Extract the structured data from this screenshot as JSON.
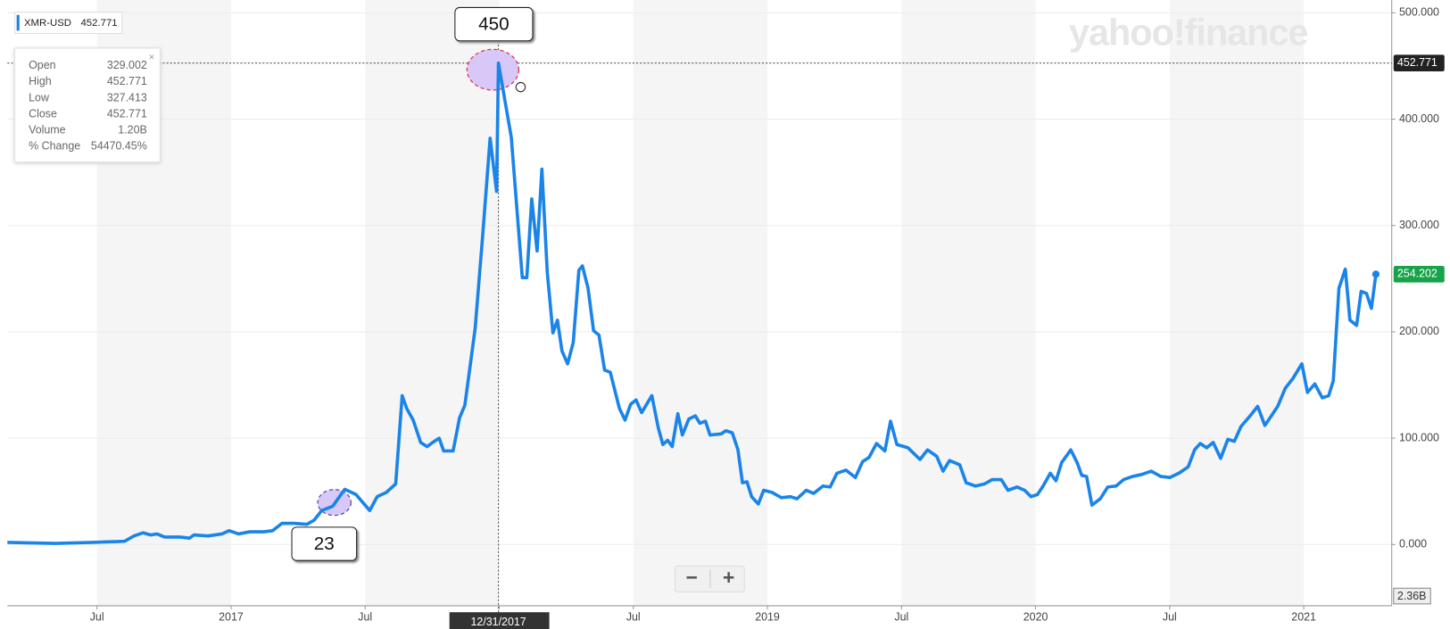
{
  "chart_data": {
    "type": "line",
    "watermark": "yahoo!finance",
    "series": [
      {
        "name": "XMR-USD",
        "color": "#1a84e9",
        "x": [
          2016.166,
          2016.345,
          2016.483,
          2016.603,
          2016.638,
          2016.672,
          2016.7,
          2016.724,
          2016.752,
          2016.81,
          2016.845,
          2016.862,
          2016.914,
          2016.966,
          2016.993,
          2017.028,
          2017.069,
          2017.121,
          2017.155,
          2017.19,
          2017.234,
          2017.283,
          2017.31,
          2017.338,
          2017.379,
          2017.424,
          2017.466,
          2017.517,
          2017.545,
          2017.579,
          2017.614,
          2017.638,
          2017.655,
          2017.679,
          2017.707,
          2017.731,
          2017.752,
          2017.776,
          2017.793,
          2017.828,
          2017.852,
          2017.872,
          2017.91,
          2017.938,
          2017.966,
          2017.99,
          2017.997,
          2018.045,
          2018.086,
          2018.103,
          2018.121,
          2018.141,
          2018.159,
          2018.179,
          2018.2,
          2018.217,
          2018.234,
          2018.255,
          2018.276,
          2018.297,
          2018.31,
          2018.331,
          2018.352,
          2018.372,
          2018.393,
          2018.414,
          2018.448,
          2018.469,
          2018.49,
          2018.51,
          2018.531,
          2018.569,
          2018.593,
          2018.61,
          2018.628,
          2018.645,
          2018.666,
          2018.683,
          2018.707,
          2018.731,
          2018.748,
          2018.769,
          2018.786,
          2018.828,
          2018.845,
          2018.869,
          2018.89,
          2018.907,
          2018.924,
          2018.941,
          2018.966,
          2018.986,
          2019.017,
          2019.052,
          2019.086,
          2019.11,
          2019.145,
          2019.172,
          2019.207,
          2019.234,
          2019.259,
          2019.293,
          2019.328,
          2019.355,
          2019.379,
          2019.407,
          2019.438,
          2019.459,
          2019.483,
          2019.524,
          2019.569,
          2019.597,
          2019.631,
          2019.655,
          2019.679,
          2019.717,
          2019.741,
          2019.776,
          2019.81,
          2019.838,
          2019.872,
          2019.897,
          2019.931,
          2019.959,
          2019.983,
          2020.007,
          2020.028,
          2020.055,
          2020.076,
          2020.097,
          2020.131,
          2020.155,
          2020.172,
          2020.19,
          2020.21,
          2020.241,
          2020.269,
          2020.3,
          2020.328,
          2020.362,
          2020.397,
          2020.431,
          2020.466,
          2020.5,
          2020.534,
          2020.569,
          2020.593,
          2020.614,
          2020.638,
          2020.662,
          2020.69,
          2020.717,
          2020.741,
          2020.766,
          2020.8,
          2020.828,
          2020.855,
          2020.879,
          2020.903,
          2020.931,
          2020.959,
          2020.993,
          2021.014,
          2021.041,
          2021.069,
          2021.093,
          2021.11,
          2021.131,
          2021.155,
          2021.172,
          2021.197,
          2021.214,
          2021.234,
          2021.252,
          2021.269
        ],
        "values": [
          2,
          1,
          2,
          3,
          8,
          11,
          9,
          10,
          7,
          7,
          6,
          9,
          8,
          10,
          13,
          10,
          12,
          12,
          13,
          20,
          20,
          19,
          23,
          32,
          36,
          52,
          47,
          32,
          45,
          49,
          57,
          140,
          128,
          117,
          96,
          92,
          96,
          100,
          88,
          88,
          119,
          131,
          203,
          290,
          382,
          332,
          452.771,
          383,
          251,
          251,
          325,
          276,
          353,
          256,
          199,
          211,
          182,
          170,
          190,
          258,
          262,
          241,
          201,
          197,
          164,
          162,
          128,
          117,
          132,
          136,
          124,
          140,
          110,
          94,
          98,
          92,
          123,
          103,
          118,
          121,
          114,
          116,
          103,
          104,
          107,
          105,
          89,
          58,
          59,
          45,
          38,
          51,
          49,
          44,
          45,
          43,
          51,
          48,
          55,
          54,
          67,
          70,
          63,
          78,
          82,
          95,
          88,
          116,
          94,
          91,
          80,
          89,
          83,
          69,
          79,
          75,
          58,
          55,
          57,
          61,
          61,
          51,
          54,
          51,
          45,
          47,
          55,
          67,
          60,
          77,
          89,
          77,
          65,
          64,
          37,
          43,
          54,
          55,
          61,
          64,
          66,
          69,
          64,
          63,
          67,
          73,
          89,
          95,
          91,
          96,
          81,
          99,
          97,
          111,
          121,
          130,
          112,
          121,
          130,
          147,
          156,
          170,
          143,
          151,
          138,
          140,
          154,
          241,
          259,
          211,
          206,
          238,
          236,
          222,
          254.202
        ]
      }
    ],
    "xlim": [
      2016.166,
      2021.328
    ],
    "xticks": [
      {
        "value": 2016.5,
        "label": "Jul"
      },
      {
        "value": 2017,
        "label": "2017"
      },
      {
        "value": 2017.5,
        "label": "Jul"
      },
      {
        "value": 2018,
        "label": "2018"
      },
      {
        "value": 2018.5,
        "label": "Jul"
      },
      {
        "value": 2019,
        "label": "2019"
      },
      {
        "value": 2019.5,
        "label": "Jul"
      },
      {
        "value": 2020,
        "label": "2020"
      },
      {
        "value": 2020.5,
        "label": "Jul"
      },
      {
        "value": 2021,
        "label": "2021"
      }
    ],
    "ylim": [
      -55,
      505
    ],
    "yticks": [
      {
        "value": 0,
        "label": "0.000"
      },
      {
        "value": 100,
        "label": "100.000"
      },
      {
        "value": 200,
        "label": "200.000"
      },
      {
        "value": 300,
        "label": "300.000"
      },
      {
        "value": 400,
        "label": "400.000"
      },
      {
        "value": 500,
        "label": "500.000"
      }
    ],
    "grid": true,
    "crosshair": {
      "x": 2017.997,
      "date_label": "12/31/2017",
      "price": 452.771
    },
    "volume_label": "2.36B",
    "tooltip": [
      [
        "Open",
        "329.002"
      ],
      [
        "High",
        "452.771"
      ],
      [
        "Low",
        "327.413"
      ],
      [
        "Close",
        "452.771"
      ],
      [
        "Volume",
        "1.20B"
      ],
      [
        "% Change",
        "54470.45%"
      ]
    ],
    "annotations": [
      {
        "x": 2017.997,
        "value": 450
      },
      {
        "x": 2017.33,
        "value": 23
      }
    ],
    "zoom_buttons": [
      "−",
      "+"
    ]
  }
}
